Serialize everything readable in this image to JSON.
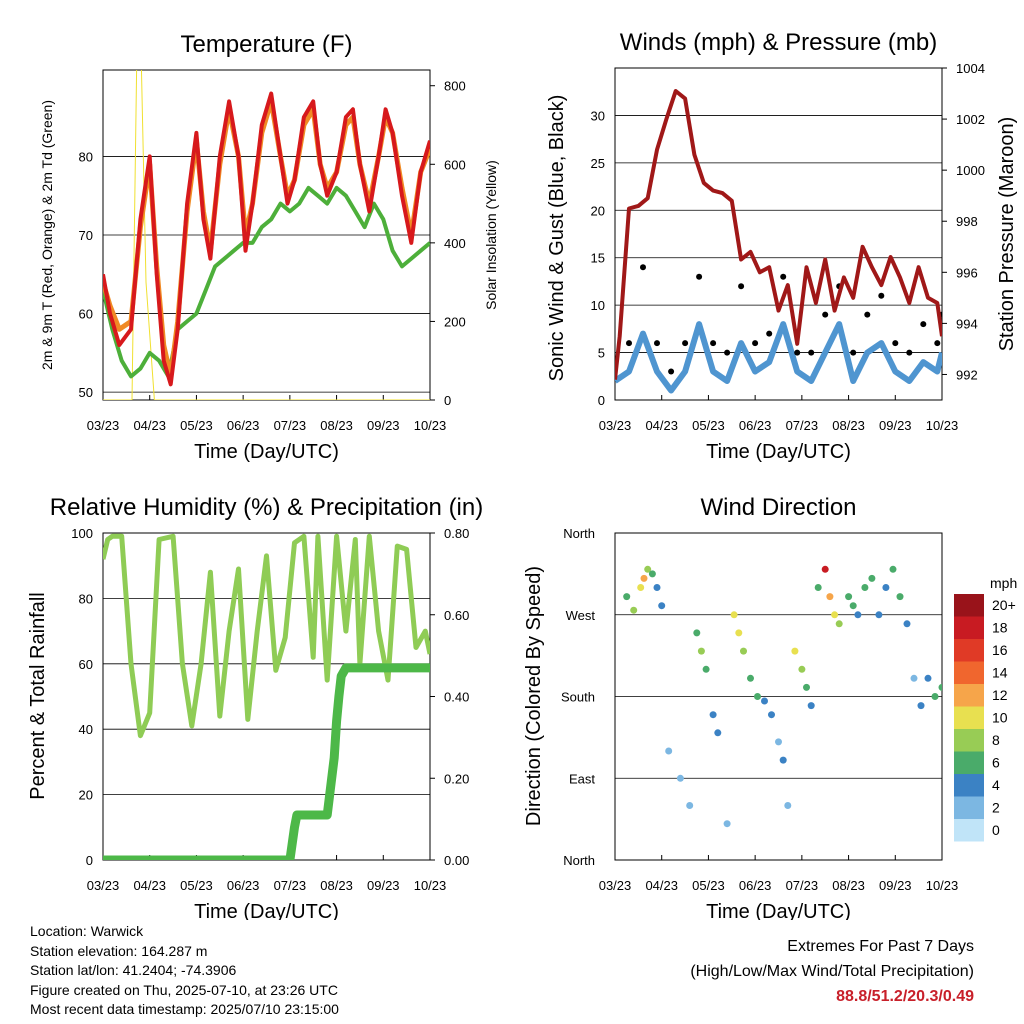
{
  "colors": {
    "temp_2m": "#d7191c",
    "temp_9m": "#f08a24",
    "dewpoint": "#4daf3a",
    "insolation": "#f0e030",
    "wind_sonic": "#4f95d0",
    "gust": "#000000",
    "pressure": "#a01818",
    "rh": "#8fcc55",
    "precip": "#4db848"
  },
  "time_ticks": [
    "03/23",
    "04/23",
    "05/23",
    "06/23",
    "07/23",
    "08/23",
    "09/23",
    "10/23"
  ],
  "chart_data": [
    {
      "type": "line",
      "title": "Temperature (F)",
      "xlabel": "Time (Day/UTC)",
      "ylabel": "2m & 9m T (Red, Orange) & 2m Td (Green)",
      "y2label": "Solar Insolation (Yellow)",
      "ylim": [
        49,
        91
      ],
      "y_ticks": [
        50,
        60,
        70,
        80
      ],
      "y2lim": [
        0,
        840
      ],
      "y2_ticks": [
        0,
        200,
        400,
        600,
        800
      ],
      "x_ticks": [
        "03/23",
        "04/23",
        "05/23",
        "06/23",
        "07/23",
        "08/23",
        "09/23",
        "10/23"
      ],
      "series": [
        {
          "x": [
            0,
            0.15,
            0.35,
            0.6,
            0.8,
            1.0,
            1.15,
            1.3,
            1.45,
            1.6,
            1.8,
            2.0,
            2.15,
            2.3,
            2.5,
            2.7,
            2.9,
            3.05,
            3.2,
            3.4,
            3.6,
            3.8,
            3.95,
            4.1,
            4.3,
            4.5,
            4.65,
            4.8,
            5.0,
            5.2,
            5.35,
            5.5,
            5.7,
            5.9,
            6.05,
            6.2,
            6.4,
            6.6,
            6.8,
            7.0
          ],
          "values": [
            65,
            60,
            56,
            58,
            72,
            80,
            65,
            54,
            51,
            58,
            74,
            83,
            72,
            67,
            80,
            87,
            80,
            68,
            74,
            84,
            88,
            80,
            74,
            77,
            85,
            87,
            79,
            75,
            78,
            85,
            86,
            79,
            73,
            80,
            86,
            83,
            75,
            69,
            78,
            82
          ]
        },
        {
          "x": [
            0,
            0.15,
            0.35,
            0.6,
            0.8,
            1.0,
            1.15,
            1.3,
            1.45,
            1.6,
            1.8,
            2.0,
            2.15,
            2.3,
            2.5,
            2.7,
            2.9,
            3.05,
            3.2,
            3.4,
            3.6,
            3.8,
            3.95,
            4.1,
            4.3,
            4.5,
            4.65,
            4.8,
            5.0,
            5.2,
            5.35,
            5.5,
            5.7,
            5.9,
            6.05,
            6.2,
            6.4,
            6.6,
            6.8,
            7.0
          ],
          "values": [
            64,
            61,
            58,
            59,
            71,
            79,
            66,
            56,
            52,
            59,
            73,
            82,
            73,
            68,
            79,
            86,
            80,
            70,
            74,
            83,
            87,
            80,
            75,
            77,
            84,
            86,
            79,
            76,
            78,
            84,
            85,
            79,
            74,
            80,
            85,
            83,
            76,
            70,
            78,
            81
          ]
        },
        {
          "x": [
            0,
            0.2,
            0.4,
            0.6,
            0.8,
            1.0,
            1.2,
            1.4,
            1.6,
            1.8,
            2.0,
            2.2,
            2.4,
            2.6,
            2.8,
            3.0,
            3.2,
            3.4,
            3.6,
            3.8,
            4.0,
            4.2,
            4.4,
            4.6,
            4.8,
            5.0,
            5.2,
            5.4,
            5.6,
            5.8,
            6.0,
            6.2,
            6.4,
            6.6,
            6.8,
            7.0
          ],
          "values": [
            63,
            58,
            54,
            52,
            53,
            55,
            54,
            52,
            58,
            59,
            60,
            63,
            66,
            67,
            68,
            69,
            69,
            71,
            72,
            74,
            73,
            74,
            76,
            75,
            74,
            76,
            75,
            73,
            71,
            74,
            72,
            68,
            66,
            67,
            68,
            69
          ]
        },
        {
          "x": [
            0,
            0.35,
            0.62,
            0.72,
            0.82,
            0.92,
            1.1,
            7.0
          ],
          "values": [
            0,
            0,
            0,
            840,
            860,
            300,
            0,
            0
          ]
        }
      ]
    },
    {
      "type": "line",
      "title": "Winds (mph) & Pressure (mb)",
      "xlabel": "Time (Day/UTC)",
      "ylabel": "Sonic Wind & Gust (Blue, Black)",
      "y2label": "Station Pressure (Maroon)",
      "ylim": [
        0,
        35
      ],
      "y_ticks": [
        0,
        5,
        10,
        15,
        20,
        25,
        30
      ],
      "y2lim": [
        991,
        1004
      ],
      "y2_ticks": [
        992,
        994,
        996,
        998,
        1000,
        1002,
        1004
      ],
      "x_ticks": [
        "03/23",
        "04/23",
        "05/23",
        "06/23",
        "07/23",
        "08/23",
        "09/23",
        "10/23"
      ],
      "series": [
        {
          "x": [
            0,
            0.3,
            0.6,
            0.9,
            1.2,
            1.5,
            1.8,
            2.1,
            2.4,
            2.7,
            3.0,
            3.3,
            3.6,
            3.9,
            4.2,
            4.5,
            4.8,
            5.1,
            5.4,
            5.7,
            6.0,
            6.3,
            6.6,
            6.9,
            7.0
          ],
          "values": [
            2,
            3,
            7,
            3,
            1,
            3,
            8,
            3,
            2,
            6,
            3,
            4,
            8,
            3,
            2,
            5,
            8,
            2,
            5,
            6,
            3,
            2,
            4,
            3,
            5
          ]
        },
        {
          "x": [
            0,
            0.3,
            0.6,
            0.9,
            1.2,
            1.5,
            1.8,
            2.1,
            2.4,
            2.7,
            3.0,
            3.3,
            3.6,
            3.9,
            4.2,
            4.5,
            4.8,
            5.1,
            5.4,
            5.7,
            6.0,
            6.3,
            6.6,
            6.9,
            7.0
          ],
          "values": [
            4,
            6,
            14,
            6,
            3,
            6,
            13,
            6,
            5,
            12,
            6,
            7,
            13,
            5,
            5,
            9,
            12,
            5,
            9,
            11,
            6,
            5,
            8,
            6,
            9
          ]
        },
        {
          "x": [
            0,
            0.1,
            0.3,
            0.5,
            0.7,
            0.9,
            1.1,
            1.3,
            1.5,
            1.7,
            1.9,
            2.1,
            2.3,
            2.5,
            2.7,
            2.9,
            3.1,
            3.3,
            3.5,
            3.7,
            3.9,
            4.1,
            4.3,
            4.5,
            4.7,
            4.9,
            5.1,
            5.3,
            5.5,
            5.7,
            5.9,
            6.1,
            6.3,
            6.5,
            6.7,
            6.9,
            7.0
          ],
          "values": [
            991.8,
            993.5,
            998.5,
            998.6,
            998.9,
            1000.8,
            1002.0,
            1003.1,
            1002.8,
            1000.6,
            999.5,
            999.2,
            999.1,
            998.8,
            996.5,
            996.8,
            996.0,
            996.2,
            994.5,
            995.5,
            993.2,
            996.2,
            994.8,
            996.5,
            994.5,
            995.8,
            995.0,
            997.0,
            996.2,
            995.5,
            996.6,
            995.8,
            994.8,
            996.2,
            995.0,
            994.8,
            993.5
          ]
        }
      ]
    },
    {
      "type": "line",
      "title": "Relative Humidity (%) & Precipitation (in)",
      "xlabel": "Time (Day/UTC)",
      "ylabel": "Percent & Total Rainfall",
      "ylim": [
        0,
        100
      ],
      "y_ticks": [
        0,
        20,
        40,
        60,
        80,
        100
      ],
      "y2lim": [
        0,
        0.8
      ],
      "y2_ticks": [
        "0.00",
        "0.20",
        "0.40",
        "0.60",
        "0.80"
      ],
      "x_ticks": [
        "03/23",
        "04/23",
        "05/23",
        "06/23",
        "07/23",
        "08/23",
        "09/23",
        "10/23"
      ],
      "series": [
        {
          "x": [
            0,
            0.1,
            0.2,
            0.4,
            0.6,
            0.8,
            1.0,
            1.2,
            1.5,
            1.7,
            1.9,
            2.1,
            2.3,
            2.5,
            2.7,
            2.9,
            3.1,
            3.3,
            3.5,
            3.7,
            3.9,
            4.1,
            4.3,
            4.5,
            4.6,
            4.8,
            5.0,
            5.2,
            5.4,
            5.5,
            5.7,
            5.9,
            6.1,
            6.3,
            6.5,
            6.7,
            6.9,
            7.0
          ],
          "values": [
            92,
            98,
            99,
            99,
            60,
            38,
            45,
            98,
            99,
            60,
            41,
            60,
            88,
            44,
            70,
            89,
            43,
            70,
            93,
            58,
            68,
            97,
            99,
            62,
            99,
            55,
            99,
            70,
            98,
            60,
            99,
            70,
            55,
            96,
            95,
            65,
            70,
            63
          ]
        },
        {
          "x": [
            0,
            0.5,
            1.0,
            1.5,
            2.0,
            2.5,
            3.0,
            3.5,
            4.0,
            4.1,
            4.15,
            4.25,
            4.5,
            4.8,
            4.95,
            5.0,
            5.05,
            5.1,
            5.2,
            5.5,
            6.0,
            6.5,
            7.0
          ],
          "values": [
            0,
            0,
            0,
            0,
            0,
            0,
            0,
            0,
            0,
            0.08,
            0.11,
            0.11,
            0.11,
            0.11,
            0.25,
            0.34,
            0.4,
            0.45,
            0.47,
            0.47,
            0.47,
            0.47,
            0.47
          ]
        }
      ]
    },
    {
      "type": "scatter",
      "title": "Wind Direction",
      "xlabel": "Time (Day/UTC)",
      "ylabel": "Direction (Colored By Speed)",
      "y_ticks": [
        "North",
        "East",
        "South",
        "West",
        "North"
      ],
      "x_ticks": [
        "03/23",
        "04/23",
        "05/23",
        "06/23",
        "07/23",
        "08/23",
        "09/23",
        "10/23"
      ],
      "colorbar": {
        "title": "mph",
        "labels": [
          "20+",
          "18",
          "16",
          "14",
          "12",
          "10",
          "8",
          "6",
          "4",
          "2",
          "0"
        ],
        "colors": [
          "#99131a",
          "#c81b22",
          "#e03a26",
          "#f0662e",
          "#f6a54a",
          "#e8e050",
          "#98cc55",
          "#4aab6a",
          "#3b82c4",
          "#7cb7e2",
          "#c0e4f8"
        ]
      },
      "series": [
        {
          "name": "speed",
          "x": [
            0.25,
            0.4,
            0.55,
            0.62,
            0.7,
            0.8,
            0.9,
            1.0,
            1.15,
            1.4,
            1.6,
            1.75,
            1.85,
            1.95,
            2.1,
            2.2,
            2.4,
            2.55,
            2.65,
            2.75,
            2.9,
            3.05,
            3.2,
            3.35,
            3.5,
            3.6,
            3.7,
            3.85,
            4.0,
            4.1,
            4.2,
            4.35,
            4.5,
            4.6,
            4.7,
            4.8,
            5.0,
            5.1,
            5.2,
            5.35,
            5.5,
            5.65,
            5.8,
            5.95,
            6.1,
            6.25,
            6.4,
            6.55,
            6.7,
            6.85,
            7.0
          ],
          "values": [
            290,
            275,
            300,
            310,
            320,
            315,
            300,
            280,
            120,
            90,
            60,
            250,
            230,
            210,
            160,
            140,
            40,
            270,
            250,
            230,
            200,
            180,
            175,
            160,
            130,
            110,
            60,
            230,
            210,
            190,
            170,
            300,
            320,
            290,
            270,
            260,
            290,
            280,
            270,
            300,
            310,
            270,
            300,
            320,
            290,
            260,
            200,
            170,
            200,
            180,
            190
          ],
          "speed": [
            6,
            8,
            10,
            12,
            8,
            6,
            4,
            3,
            2,
            2,
            1,
            6,
            8,
            6,
            4,
            3,
            2,
            10,
            9,
            8,
            6,
            5,
            4,
            3,
            2,
            3,
            1,
            10,
            8,
            6,
            4,
            6,
            18,
            12,
            10,
            8,
            6,
            5,
            4,
            6,
            5,
            3,
            4,
            6,
            5,
            4,
            2,
            3,
            4,
            5,
            6
          ]
        }
      ]
    }
  ],
  "info": {
    "location": "Location: Warwick",
    "elevation": "Station elevation: 164.287 m",
    "latlon": "Station lat/lon: 41.2404; -74.3906",
    "created": "Figure created on Thu, 2025-07-10, at 23:26 UTC",
    "recent": "Most recent data timestamp: 2025/07/10 23:15:00"
  },
  "extremes": {
    "title": "Extremes For Past 7 Days",
    "subtitle": "(High/Low/Max Wind/Total Precipitation)",
    "values": "88.8/51.2/20.3/0.49"
  }
}
